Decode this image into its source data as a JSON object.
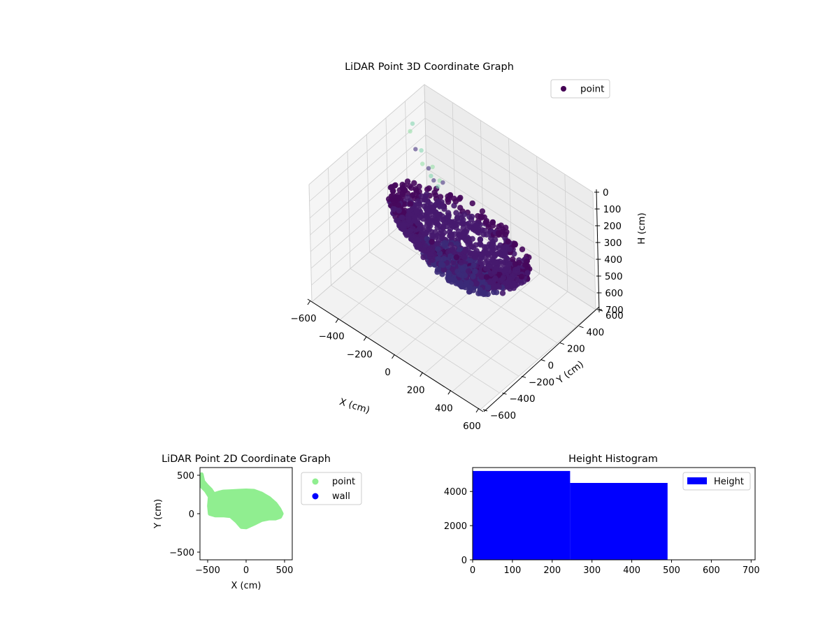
{
  "chart_data": [
    {
      "type": "scatter",
      "projection": "3d",
      "title": "LiDAR Point 3D Coordinate Graph",
      "xlabel": "X (cm)",
      "ylabel": "Y (cm)",
      "zlabel": "H (cm)",
      "x_ticks": [
        "−600",
        "−400",
        "−200",
        "0",
        "200",
        "400",
        "600"
      ],
      "y_ticks": [
        "−600",
        "−400",
        "−200",
        "0",
        "200",
        "400",
        "600"
      ],
      "z_ticks": [
        "0",
        "100",
        "200",
        "300",
        "400",
        "500",
        "600",
        "700"
      ],
      "xlim": [
        -600,
        600
      ],
      "ylim": [
        -600,
        600
      ],
      "zlim": [
        0,
        700
      ],
      "z_inverted": true,
      "grid": true,
      "legend": {
        "position": "upper right",
        "entries": [
          {
            "name": "point",
            "color": "#440154"
          }
        ]
      },
      "colormap": "viridis",
      "series": [
        {
          "name": "point",
          "note_points": [
            {
              "x": -480,
              "y": 300,
              "h": 20
            },
            {
              "x": -470,
              "y": 260,
              "h": 40
            },
            {
              "x": -420,
              "y": 240,
              "h": 110
            },
            {
              "x": -350,
              "y": 200,
              "h": 60
            },
            {
              "x": -330,
              "y": 180,
              "h": 120
            },
            {
              "x": -300,
              "y": 200,
              "h": 140
            },
            {
              "x": -270,
              "y": 180,
              "h": 160
            },
            {
              "x": -250,
              "y": 170,
              "h": 90
            },
            {
              "x": -230,
              "y": 150,
              "h": 150
            },
            {
              "x": -200,
              "y": 150,
              "h": 170
            },
            {
              "x": -180,
              "y": 140,
              "h": 120
            },
            {
              "x": -150,
              "y": 130,
              "h": 110
            }
          ],
          "bulk_extent": {
            "x": [
              -480,
              480
            ],
            "y": [
              -150,
              300
            ],
            "h": [
              160,
              600
            ]
          }
        }
      ]
    },
    {
      "type": "scatter",
      "title": "LiDAR Point 2D Coordinate Graph",
      "xlabel": "X (cm)",
      "ylabel": "Y (cm)",
      "x_ticks": [
        "−500",
        "0",
        "500"
      ],
      "y_ticks": [
        "500",
        "0",
        "−500"
      ],
      "xlim": [
        -600,
        600
      ],
      "ylim": [
        -600,
        600
      ],
      "legend": {
        "position": "outside right",
        "entries": [
          {
            "name": "point",
            "color": "#90ee90"
          },
          {
            "name": "wall",
            "color": "#0000ff"
          }
        ]
      },
      "series": [
        {
          "name": "point",
          "color": "#90ee90",
          "outline": [
            [
              -580,
              510
            ],
            [
              -560,
              420
            ],
            [
              -510,
              360
            ],
            [
              -460,
              310
            ],
            [
              -420,
              250
            ],
            [
              -360,
              270
            ],
            [
              -300,
              285
            ],
            [
              -200,
              290
            ],
            [
              -100,
              295
            ],
            [
              0,
              300
            ],
            [
              100,
              295
            ],
            [
              200,
              260
            ],
            [
              300,
              200
            ],
            [
              380,
              130
            ],
            [
              430,
              60
            ],
            [
              460,
              0
            ],
            [
              440,
              -40
            ],
            [
              380,
              -60
            ],
            [
              300,
              -60
            ],
            [
              200,
              -80
            ],
            [
              100,
              -130
            ],
            [
              0,
              -175
            ],
            [
              -60,
              -170
            ],
            [
              -120,
              -100
            ],
            [
              -200,
              -30
            ],
            [
              -300,
              -20
            ],
            [
              -400,
              -20
            ],
            [
              -470,
              0
            ],
            [
              -480,
              100
            ],
            [
              -470,
              220
            ],
            [
              -520,
              300
            ],
            [
              -580,
              360
            ]
          ]
        },
        {
          "name": "wall",
          "color": "#0000ff",
          "points": []
        }
      ]
    },
    {
      "type": "bar",
      "subtype": "histogram",
      "title": "Height Histogram",
      "xlabel": "",
      "ylabel": "",
      "x_ticks": [
        "0",
        "100",
        "200",
        "300",
        "400",
        "500",
        "600",
        "700"
      ],
      "y_ticks": [
        "0",
        "2000",
        "4000"
      ],
      "xlim": [
        0,
        710
      ],
      "ylim": [
        0,
        5400
      ],
      "legend": {
        "position": "upper right",
        "entries": [
          {
            "name": "Height",
            "color": "#0000ff"
          }
        ]
      },
      "series": [
        {
          "name": "Height",
          "color": "#0000ff",
          "bins": [
            {
              "x0": 0,
              "x1": 245,
              "count": 5200
            },
            {
              "x0": 245,
              "x1": 490,
              "count": 4500
            }
          ]
        }
      ]
    }
  ]
}
